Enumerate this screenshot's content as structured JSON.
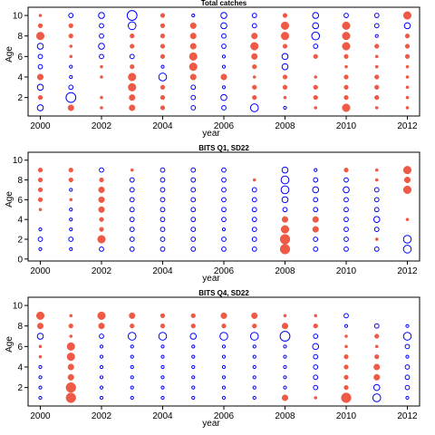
{
  "colors": {
    "positive": "#ee5a45",
    "negative": "#0000ff"
  },
  "chart_data": [
    {
      "type": "scatter",
      "title": "Total catches",
      "xlabel": "year",
      "ylabel": "Age",
      "xlim": [
        1999.6,
        2012.4
      ],
      "ylim": [
        0.2,
        10.8
      ],
      "xticks": [
        2000,
        2002,
        2004,
        2006,
        2008,
        2010,
        2012
      ],
      "yticks": [
        2,
        4,
        6,
        8,
        10
      ],
      "ages": [
        1,
        2,
        3,
        4,
        5,
        6,
        7,
        8,
        9,
        10
      ],
      "years": [
        2000,
        2001,
        2002,
        2003,
        2004,
        2005,
        2006,
        2007,
        2008,
        2009,
        2010,
        2011,
        2012
      ],
      "residuals": [
        [
          -3,
          2,
          -3,
          3,
          -2,
          -2,
          -3,
          4,
          2,
          1
        ],
        [
          3,
          -5,
          -2,
          -1,
          -1,
          1,
          1,
          2,
          2,
          -2
        ],
        [
          1,
          1,
          0,
          1,
          1,
          -2,
          -3,
          -2,
          -2,
          -3
        ],
        [
          3,
          3,
          4,
          4,
          2,
          -2,
          2,
          2,
          -4,
          -5
        ],
        [
          2,
          2,
          2,
          -4,
          -1,
          2,
          2,
          2,
          2,
          2
        ],
        [
          -2,
          -2,
          -2,
          3,
          4,
          4,
          3,
          3,
          3,
          -1
        ],
        [
          -2,
          -3,
          -1,
          3,
          -1,
          -1,
          -2,
          -2,
          -3,
          -3
        ],
        [
          -4,
          2,
          2,
          1,
          2,
          3,
          4,
          3,
          -2,
          -2
        ],
        [
          -1,
          1,
          2,
          2,
          -3,
          -3,
          2,
          4,
          4,
          2
        ],
        [
          1,
          2,
          2,
          1,
          0,
          2,
          -2,
          -4,
          -3,
          -3
        ],
        [
          4,
          2,
          2,
          2,
          1,
          2,
          4,
          4,
          4,
          -2
        ],
        [
          1,
          2,
          2,
          2,
          1,
          1,
          2,
          -1,
          -2,
          -2
        ],
        [
          1,
          1,
          1,
          1,
          1,
          2,
          2,
          2,
          -3,
          4
        ]
      ]
    },
    {
      "type": "scatter",
      "title": "BITS Q1, SD22",
      "xlabel": "year",
      "ylabel": "Age",
      "xlim": [
        1999.6,
        2012.4
      ],
      "ylim": [
        -0.2,
        10.8
      ],
      "xticks": [
        2000,
        2002,
        2004,
        2006,
        2008,
        2010,
        2012
      ],
      "yticks": [
        0,
        2,
        4,
        6,
        8,
        10
      ],
      "ages": [
        1,
        2,
        3,
        4,
        5,
        6,
        7,
        8,
        9,
        10
      ],
      "years": [
        2000,
        2001,
        2002,
        2003,
        2004,
        2005,
        2006,
        2007,
        2008,
        2009,
        2010,
        2011,
        2012
      ],
      "residuals": [
        [
          -1,
          -2,
          -1,
          0,
          1,
          2,
          2,
          2,
          2,
          0
        ],
        [
          -1,
          -2,
          -1,
          -1,
          -1,
          1,
          -1,
          2,
          2,
          0
        ],
        [
          -2,
          4,
          2,
          2,
          3,
          3,
          3,
          2,
          -2,
          0
        ],
        [
          -2,
          -2,
          -2,
          -2,
          -2,
          -2,
          -2,
          -2,
          1,
          0
        ],
        [
          -2,
          -2,
          -2,
          -2,
          -2,
          -2,
          -2,
          -2,
          -2,
          0
        ],
        [
          -2,
          -2,
          -2,
          -2,
          -2,
          -2,
          -2,
          -2,
          -2,
          0
        ],
        [
          -2,
          -2,
          -1,
          -2,
          -2,
          -2,
          -2,
          -2,
          -2,
          0
        ],
        [
          -2,
          -2,
          -2,
          -2,
          -2,
          -2,
          -2,
          1,
          0,
          0
        ],
        [
          5,
          5,
          4,
          3,
          -2,
          -3,
          -4,
          -4,
          -3,
          0
        ],
        [
          -2,
          -2,
          3,
          3,
          -2,
          -2,
          -3,
          -2,
          -1,
          0
        ],
        [
          -2,
          -2,
          -2,
          -2,
          -2,
          -2,
          -3,
          -2,
          2,
          0
        ],
        [
          -2,
          1,
          -2,
          -3,
          -2,
          -2,
          -2,
          1,
          1,
          0
        ],
        [
          -4,
          -4,
          0,
          1,
          0,
          0,
          4,
          3,
          4,
          0
        ]
      ]
    },
    {
      "type": "scatter",
      "title": "BITS Q4, SD22",
      "xlabel": "year",
      "ylabel": "Age",
      "xlim": [
        1999.6,
        2012.4
      ],
      "ylim": [
        0.2,
        10.8
      ],
      "xticks": [
        2000,
        2002,
        2004,
        2006,
        2008,
        2010,
        2012
      ],
      "yticks": [
        2,
        4,
        6,
        8,
        10
      ],
      "ages": [
        1,
        2,
        3,
        4,
        5,
        6,
        7,
        8,
        9
      ],
      "years": [
        2000,
        2001,
        2002,
        2003,
        2004,
        2005,
        2006,
        2007,
        2008,
        2009,
        2010,
        2011,
        2012
      ],
      "residuals": [
        [
          -1,
          -1,
          -1,
          -1,
          1,
          1,
          -3,
          3,
          4
        ],
        [
          5,
          5,
          3,
          3,
          4,
          4,
          1,
          2,
          1
        ],
        [
          -1,
          -1,
          -1,
          -1,
          -1,
          -1,
          -2,
          3,
          4
        ],
        [
          -1,
          -1,
          -1,
          -1,
          -1,
          -1,
          -4,
          2,
          3
        ],
        [
          -1,
          -1,
          -1,
          -1,
          -1,
          -1,
          -4,
          2,
          2
        ],
        [
          -1,
          -1,
          -1,
          -1,
          -1,
          -1,
          -3,
          2,
          2
        ],
        [
          -1,
          -1,
          -1,
          -1,
          -1,
          -1,
          -4,
          2,
          3
        ],
        [
          -1,
          -1,
          -1,
          -1,
          -1,
          -1,
          -4,
          2,
          3
        ],
        [
          3,
          -1,
          -1,
          -1,
          -1,
          -1,
          -5,
          3,
          1
        ],
        [
          1,
          -2,
          -2,
          -2,
          -2,
          -3,
          -2,
          2,
          1
        ],
        [
          5,
          2,
          2,
          2,
          2,
          1,
          1,
          -1,
          -2
        ],
        [
          -4,
          -3,
          3,
          3,
          2,
          1,
          2,
          -2,
          0
        ],
        [
          -1,
          -2,
          -2,
          -2,
          -1,
          -2,
          -4,
          -1,
          0
        ]
      ]
    }
  ]
}
